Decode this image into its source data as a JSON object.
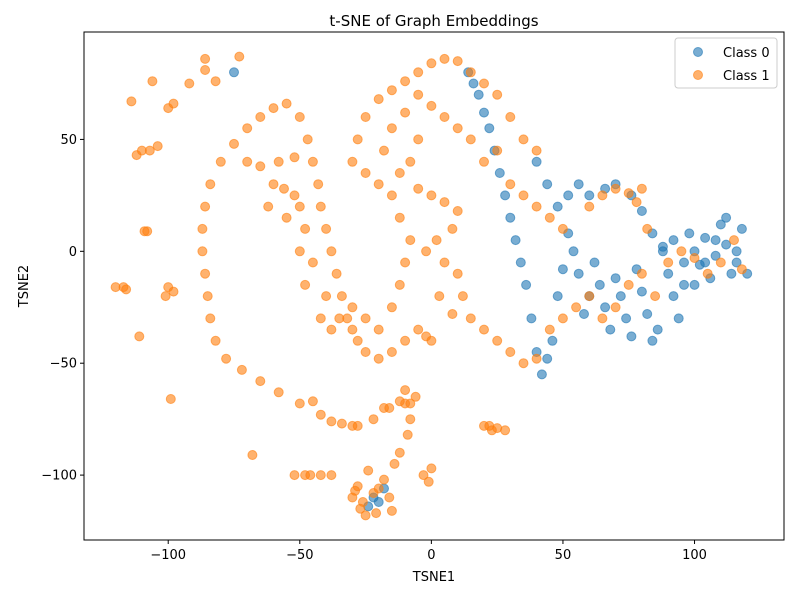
{
  "chart_data": {
    "type": "scatter",
    "title": "t-SNE of Graph Embeddings",
    "xlabel": "TSNE1",
    "ylabel": "TSNE2",
    "xlim": [
      -132,
      134
    ],
    "ylim": [
      -129,
      98
    ],
    "xticks": [
      -100,
      -50,
      0,
      50,
      100
    ],
    "yticks": [
      -100,
      -50,
      0,
      50
    ],
    "grid": false,
    "legend_position": "top-right",
    "series": [
      {
        "name": "Class 0",
        "color": "#1f77b4",
        "points": [
          [
            118,
            10
          ],
          [
            116,
            -5
          ],
          [
            114,
            -10
          ],
          [
            112,
            3
          ],
          [
            110,
            12
          ],
          [
            108,
            -2
          ],
          [
            106,
            -12
          ],
          [
            104,
            6
          ],
          [
            102,
            -6
          ],
          [
            100,
            0
          ],
          [
            98,
            8
          ],
          [
            96,
            -15
          ],
          [
            94,
            -30
          ],
          [
            92,
            -20
          ],
          [
            90,
            -10
          ],
          [
            88,
            2
          ],
          [
            86,
            -35
          ],
          [
            84,
            -40
          ],
          [
            82,
            -28
          ],
          [
            80,
            -18
          ],
          [
            78,
            -8
          ],
          [
            76,
            -38
          ],
          [
            74,
            -30
          ],
          [
            72,
            -20
          ],
          [
            70,
            -12
          ],
          [
            68,
            -35
          ],
          [
            66,
            -25
          ],
          [
            64,
            -15
          ],
          [
            62,
            -5
          ],
          [
            60,
            -20
          ],
          [
            58,
            -28
          ],
          [
            56,
            -10
          ],
          [
            54,
            0
          ],
          [
            52,
            8
          ],
          [
            50,
            -8
          ],
          [
            48,
            -20
          ],
          [
            46,
            -40
          ],
          [
            44,
            -48
          ],
          [
            42,
            -55
          ],
          [
            40,
            -45
          ],
          [
            38,
            -30
          ],
          [
            36,
            -15
          ],
          [
            34,
            -5
          ],
          [
            32,
            5
          ],
          [
            30,
            15
          ],
          [
            28,
            25
          ],
          [
            26,
            35
          ],
          [
            24,
            45
          ],
          [
            22,
            55
          ],
          [
            20,
            62
          ],
          [
            18,
            70
          ],
          [
            16,
            75
          ],
          [
            14,
            80
          ],
          [
            40,
            40
          ],
          [
            44,
            30
          ],
          [
            48,
            20
          ],
          [
            52,
            25
          ],
          [
            56,
            30
          ],
          [
            60,
            25
          ],
          [
            66,
            28
          ],
          [
            70,
            30
          ],
          [
            76,
            25
          ],
          [
            80,
            18
          ],
          [
            84,
            8
          ],
          [
            88,
            0
          ],
          [
            92,
            5
          ],
          [
            96,
            -5
          ],
          [
            100,
            -15
          ],
          [
            104,
            -5
          ],
          [
            108,
            5
          ],
          [
            112,
            15
          ],
          [
            116,
            0
          ],
          [
            120,
            -10
          ],
          [
            -22,
            -110
          ],
          [
            -20,
            -112
          ],
          [
            -18,
            -106
          ],
          [
            -24,
            -114
          ],
          [
            -75,
            80
          ]
        ]
      },
      {
        "name": "Class 1",
        "color": "#ff7f0e",
        "points": [
          [
            -55,
            66
          ],
          [
            -60,
            64
          ],
          [
            -65,
            60
          ],
          [
            -70,
            55
          ],
          [
            -75,
            48
          ],
          [
            -80,
            40
          ],
          [
            -84,
            30
          ],
          [
            -86,
            20
          ],
          [
            -87,
            10
          ],
          [
            -87,
            0
          ],
          [
            -86,
            -10
          ],
          [
            -85,
            -20
          ],
          [
            -84,
            -30
          ],
          [
            -82,
            -40
          ],
          [
            -78,
            -48
          ],
          [
            -72,
            -53
          ],
          [
            -65,
            -58
          ],
          [
            -58,
            -63
          ],
          [
            -50,
            -68
          ],
          [
            -42,
            -73
          ],
          [
            -34,
            -77
          ],
          [
            -28,
            -78
          ],
          [
            -22,
            -75
          ],
          [
            -16,
            -70
          ],
          [
            -10,
            -68
          ],
          [
            -8,
            -75
          ],
          [
            -9,
            -82
          ],
          [
            -12,
            -90
          ],
          [
            -14,
            -95
          ],
          [
            -50,
            60
          ],
          [
            -47,
            50
          ],
          [
            -45,
            40
          ],
          [
            -43,
            30
          ],
          [
            -42,
            20
          ],
          [
            -40,
            10
          ],
          [
            -38,
            0
          ],
          [
            -36,
            -10
          ],
          [
            -34,
            -20
          ],
          [
            -32,
            -30
          ],
          [
            -30,
            -35
          ],
          [
            -28,
            -40
          ],
          [
            -25,
            -45
          ],
          [
            -20,
            -48
          ],
          [
            -15,
            -45
          ],
          [
            -10,
            -40
          ],
          [
            -5,
            -35
          ],
          [
            -2,
            -38
          ],
          [
            0,
            -40
          ],
          [
            -70,
            40
          ],
          [
            -65,
            38
          ],
          [
            -58,
            40
          ],
          [
            -52,
            42
          ],
          [
            -60,
            30
          ],
          [
            -56,
            28
          ],
          [
            -52,
            25
          ],
          [
            -50,
            20
          ],
          [
            -62,
            20
          ],
          [
            -55,
            15
          ],
          [
            -48,
            10
          ],
          [
            -50,
            0
          ],
          [
            -45,
            -5
          ],
          [
            -48,
            -15
          ],
          [
            -40,
            -20
          ],
          [
            -42,
            -30
          ],
          [
            -38,
            -35
          ],
          [
            -35,
            -30
          ],
          [
            -30,
            -25
          ],
          [
            -25,
            -30
          ],
          [
            -20,
            -35
          ],
          [
            -15,
            -25
          ],
          [
            -12,
            -15
          ],
          [
            -10,
            -5
          ],
          [
            -8,
            5
          ],
          [
            -12,
            15
          ],
          [
            -15,
            25
          ],
          [
            -20,
            30
          ],
          [
            -25,
            35
          ],
          [
            -30,
            40
          ],
          [
            -28,
            50
          ],
          [
            -25,
            60
          ],
          [
            -20,
            68
          ],
          [
            -15,
            72
          ],
          [
            -10,
            76
          ],
          [
            -5,
            80
          ],
          [
            0,
            84
          ],
          [
            5,
            86
          ],
          [
            10,
            85
          ],
          [
            15,
            80
          ],
          [
            20,
            75
          ],
          [
            25,
            70
          ],
          [
            30,
            60
          ],
          [
            35,
            50
          ],
          [
            40,
            45
          ],
          [
            -18,
            45
          ],
          [
            -15,
            55
          ],
          [
            -10,
            62
          ],
          [
            -5,
            50
          ],
          [
            -8,
            40
          ],
          [
            -12,
            35
          ],
          [
            -5,
            28
          ],
          [
            0,
            25
          ],
          [
            5,
            22
          ],
          [
            10,
            18
          ],
          [
            8,
            10
          ],
          [
            2,
            5
          ],
          [
            -2,
            0
          ],
          [
            5,
            -5
          ],
          [
            10,
            -10
          ],
          [
            12,
            -20
          ],
          [
            8,
            -28
          ],
          [
            3,
            -20
          ],
          [
            15,
            -30
          ],
          [
            20,
            -35
          ],
          [
            25,
            -40
          ],
          [
            30,
            -45
          ],
          [
            35,
            -50
          ],
          [
            40,
            -48
          ],
          [
            45,
            -35
          ],
          [
            50,
            -30
          ],
          [
            55,
            -25
          ],
          [
            60,
            -20
          ],
          [
            65,
            -30
          ],
          [
            70,
            -25
          ],
          [
            75,
            -15
          ],
          [
            80,
            -10
          ],
          [
            85,
            -20
          ],
          [
            90,
            -5
          ],
          [
            95,
            0
          ],
          [
            100,
            -3
          ],
          [
            105,
            -10
          ],
          [
            110,
            -5
          ],
          [
            115,
            5
          ],
          [
            118,
            -8
          ],
          [
            60,
            20
          ],
          [
            65,
            25
          ],
          [
            70,
            28
          ],
          [
            75,
            26
          ],
          [
            78,
            22
          ],
          [
            80,
            28
          ],
          [
            82,
            10
          ],
          [
            30,
            30
          ],
          [
            35,
            25
          ],
          [
            40,
            20
          ],
          [
            45,
            15
          ],
          [
            50,
            10
          ],
          [
            20,
            40
          ],
          [
            25,
            45
          ],
          [
            15,
            50
          ],
          [
            10,
            55
          ],
          [
            5,
            60
          ],
          [
            0,
            65
          ],
          [
            -5,
            70
          ],
          [
            -10,
            -62
          ],
          [
            -6,
            -65
          ],
          [
            -3,
            -100
          ],
          [
            -1,
            -103
          ],
          [
            0,
            -97
          ],
          [
            -110,
            45
          ],
          [
            -107,
            45
          ],
          [
            -104,
            47
          ],
          [
            -112,
            43
          ],
          [
            -108,
            9
          ],
          [
            -109,
            9
          ],
          [
            -111,
            -38
          ],
          [
            -99,
            -66
          ],
          [
            -100,
            -16
          ],
          [
            -98,
            -18
          ],
          [
            -101,
            -20
          ],
          [
            -120,
            -16
          ],
          [
            -117,
            -16
          ],
          [
            -116,
            -17
          ],
          [
            -114,
            67
          ],
          [
            -106,
            76
          ],
          [
            -100,
            64
          ],
          [
            -98,
            66
          ],
          [
            -92,
            75
          ],
          [
            -86,
            81
          ],
          [
            -86,
            86
          ],
          [
            -73,
            87
          ],
          [
            -82,
            76
          ],
          [
            -68,
            -91
          ],
          [
            -52,
            -100
          ],
          [
            -48,
            -100
          ],
          [
            -46,
            -100
          ],
          [
            -42,
            -100
          ],
          [
            -38,
            -100
          ],
          [
            -45,
            -67
          ],
          [
            -30,
            -110
          ],
          [
            -28,
            -105
          ],
          [
            -26,
            -112
          ],
          [
            -25,
            -118
          ],
          [
            -22,
            -108
          ],
          [
            -20,
            -106
          ],
          [
            -16,
            -110
          ],
          [
            -15,
            -116
          ],
          [
            -18,
            -102
          ],
          [
            -24,
            -98
          ],
          [
            -27,
            -115
          ],
          [
            -29,
            -107
          ],
          [
            -21,
            -117
          ],
          [
            20,
            -78
          ],
          [
            23,
            -80
          ],
          [
            25,
            -79
          ],
          [
            28,
            -80
          ],
          [
            22,
            -78
          ],
          [
            -8,
            -68
          ],
          [
            -12,
            -67
          ],
          [
            -18,
            -70
          ],
          [
            -30,
            -78
          ],
          [
            -38,
            -76
          ]
        ]
      }
    ]
  }
}
